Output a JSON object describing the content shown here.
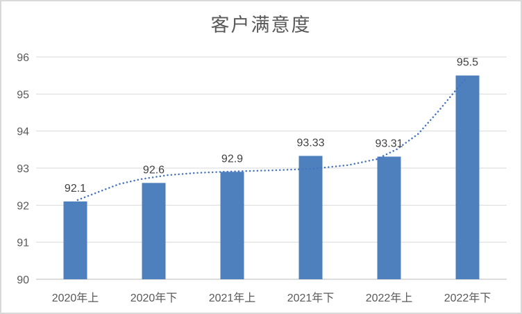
{
  "window": {
    "background": "#ffffff",
    "border_color": "#d9d9d9"
  },
  "chart_data": {
    "type": "bar",
    "title": "客户满意度",
    "categories": [
      "2020年上",
      "2020年下",
      "2021年上",
      "2021年下",
      "2022年上",
      "2022年下"
    ],
    "series": [
      {
        "name": "客户满意度",
        "type": "bar",
        "values": [
          92.1,
          92.6,
          92.9,
          93.33,
          93.31,
          95.5
        ],
        "value_labels": [
          "92.1",
          "92.6",
          "92.9",
          "93.33",
          "93.31",
          "95.5"
        ],
        "color": "#4e80bd"
      }
    ],
    "trendline": {
      "style": "dotted",
      "color": "#4472c4",
      "points": [
        [
          1.03,
          92.14
        ],
        [
          1.3,
          92.36
        ],
        [
          1.56,
          92.57
        ],
        [
          1.83,
          92.7
        ],
        [
          2.18,
          92.81
        ],
        [
          2.54,
          92.87
        ],
        [
          3.0,
          92.91
        ],
        [
          3.51,
          92.94
        ],
        [
          4.01,
          92.98
        ],
        [
          4.48,
          93.08
        ],
        [
          4.84,
          93.24
        ],
        [
          5.1,
          93.51
        ],
        [
          5.37,
          93.92
        ],
        [
          5.63,
          94.54
        ],
        [
          5.85,
          95.1
        ],
        [
          5.97,
          95.4
        ]
      ]
    },
    "xlabel": "",
    "ylabel": "",
    "ylim": [
      90,
      96
    ],
    "y_ticks": [
      90,
      91,
      92,
      93,
      94,
      95,
      96
    ],
    "grid": true,
    "legend": "none",
    "colors": {
      "bar": "#4e80bd",
      "trendline": "#4472c4",
      "gridline": "#d9d9d9",
      "axis_line": "#c6c6c6",
      "tick_text": "#595959",
      "data_label_text": "#404040",
      "title_text": "#595959"
    }
  }
}
